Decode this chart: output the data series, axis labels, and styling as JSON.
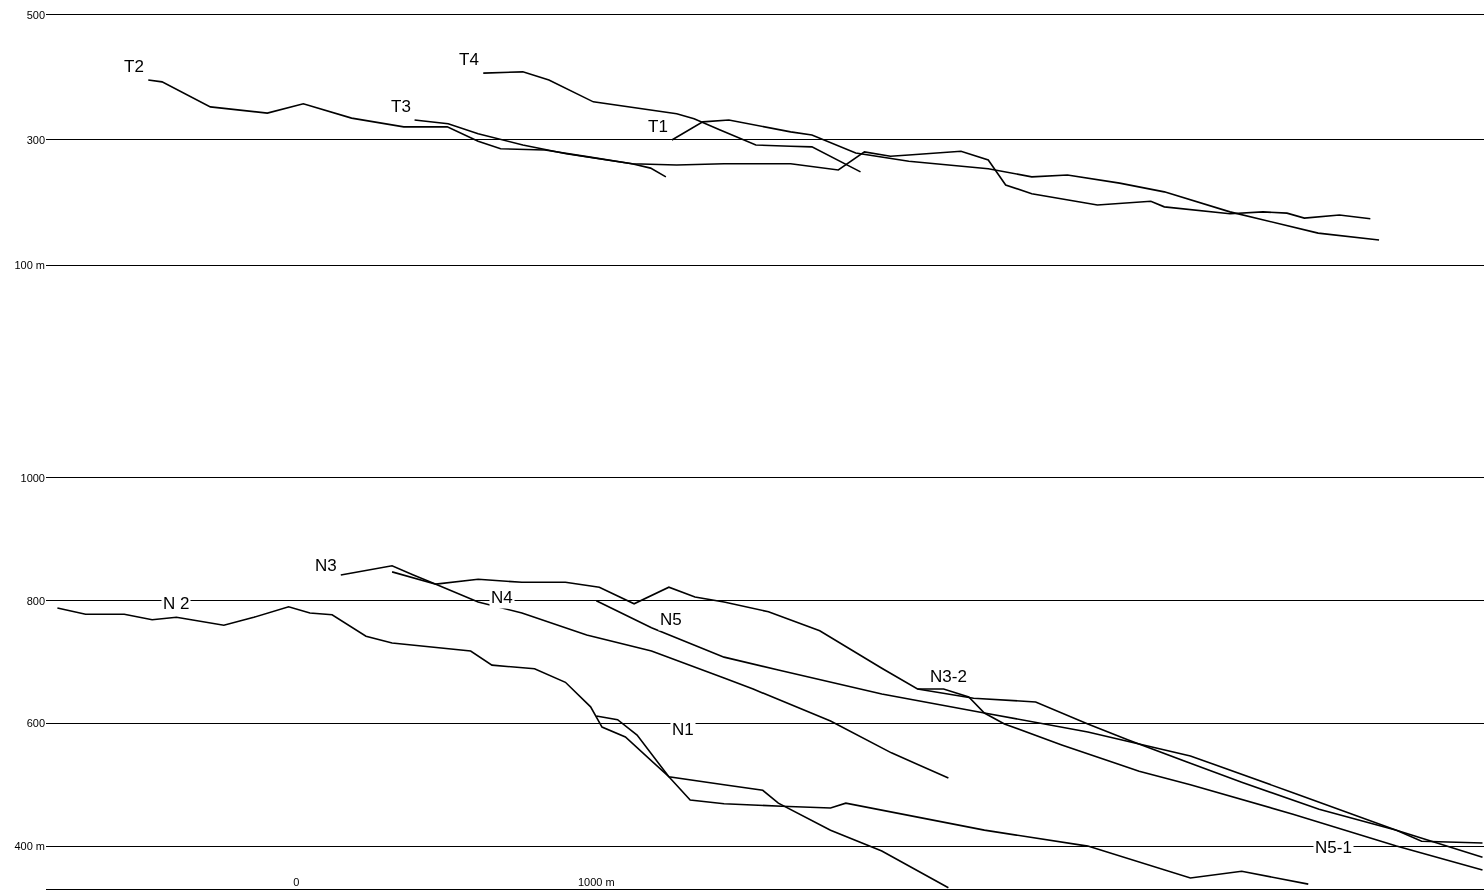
{
  "chart_data": [
    {
      "type": "line",
      "xlim": [
        -835,
        3960
      ],
      "ylim": [
        100,
        500
      ],
      "yticks": [
        500,
        300,
        {
          "value": 100,
          "label": "100 m"
        }
      ],
      "grid": "y",
      "tick_labels": "y",
      "series": [
        {
          "color": "#000000",
          "x": [
            -494,
            -448,
            -287,
            -97,
            23,
            184,
            358,
            503,
            606,
            681,
            829,
            974,
            1119,
            1268,
            1426,
            1648,
            1807,
            1894,
            1981,
            2042,
            2216,
            2307,
            2365,
            2452,
            2671,
            2849,
            2894,
            3113,
            3223,
            3303,
            3361,
            3478,
            3581
          ],
          "values": [
            396,
            393,
            353,
            343,
            358,
            335,
            321,
            321,
            298,
            286,
            284,
            273,
            262,
            260,
            262,
            262,
            252,
            281,
            274,
            276,
            282,
            268,
            228,
            214,
            196,
            202,
            193,
            182,
            185,
            183,
            175,
            180,
            174
          ]
        },
        {
          "color": "#000000",
          "x": [
            1252,
            1355,
            1442,
            1648,
            1719,
            1865,
            2042,
            2307,
            2452,
            2571,
            2745,
            2894,
            3113,
            3407,
            3610
          ],
          "values": [
            300,
            329,
            332,
            313,
            308,
            279,
            266,
            254,
            241,
            244,
            231,
            217,
            185,
            151,
            140
          ]
        },
        {
          "color": "#000000",
          "x": [
            623,
            755,
            842,
            990,
            1268,
            1326,
            1413,
            1532,
            1648,
            1719,
            1881
          ],
          "values": [
            407,
            409,
            396,
            361,
            342,
            334,
            316,
            292,
            290,
            289,
            249
          ]
        },
        {
          "color": "#000000",
          "x": [
            394,
            506,
            606,
            755,
            900,
            1119,
            1181,
            1232
          ],
          "values": [
            332,
            326,
            310,
            292,
            278,
            262,
            255,
            241
          ]
        }
      ],
      "annotations": [
        {
          "text": "T2",
          "x": -494,
          "y": 396
        },
        {
          "text": "T4",
          "x": 623,
          "y": 407
        },
        {
          "text": "T3",
          "x": 394,
          "y": 332
        },
        {
          "text": "T1",
          "x": 1252,
          "y": 300
        }
      ]
    },
    {
      "type": "line",
      "xlim": [
        -835,
        3960
      ],
      "ylim": [
        330,
        1000
      ],
      "yticks": [
        1000,
        800,
        600,
        {
          "value": 400,
          "label": "400 m"
        }
      ],
      "xticks": [
        0,
        {
          "value": 1000,
          "label": "1000 m"
        }
      ],
      "grid": "y",
      "series": [
        {
          "color": "#000000",
          "x": [
            -797,
            -703,
            -574,
            -481,
            -400,
            -242,
            -142,
            -26,
            45,
            119,
            232,
            319,
            581,
            652,
            794,
            897,
            981,
            1019,
            1097,
            1242,
            1313,
            1426,
            1619,
            1781,
            1832,
            2294,
            2639,
            2981,
            3152,
            3374
          ],
          "values": [
            788,
            778,
            778,
            769,
            773,
            760,
            773,
            790,
            780,
            777,
            742,
            731,
            718,
            695,
            689,
            667,
            627,
            594,
            578,
            513,
            475,
            469,
            465,
            462,
            470,
            426,
            400,
            348,
            359,
            338
          ]
        },
        {
          "color": "#000000",
          "x": [
            1000,
            1071,
            1136,
            1242,
            1426,
            1555,
            1607,
            1781,
            1952,
            2174
          ],
          "values": [
            612,
            606,
            581,
            513,
            500,
            491,
            470,
            426,
            392,
            332
          ]
        },
        {
          "color": "#000000",
          "x": [
            148,
            319,
            390,
            465,
            606,
            752,
            897,
            1010,
            1126,
            1242,
            1329,
            1426,
            1574,
            1745,
            1952,
            2071,
            2158,
            2242,
            2294,
            2361,
            2552,
            2810,
            2981,
            3323,
            3668,
            3955
          ],
          "values": [
            842,
            857,
            842,
            827,
            835,
            830,
            830,
            822,
            795,
            822,
            806,
            798,
            782,
            751,
            690,
            656,
            656,
            643,
            617,
            599,
            565,
            522,
            500,
            452,
            400,
            361
          ]
        },
        {
          "color": "#000000",
          "x": [
            2071,
            2258,
            2465,
            2639,
            2774,
            2981,
            3152,
            3410,
            3668,
            3752,
            3955
          ],
          "values": [
            656,
            641,
            635,
            599,
            573,
            535,
            504,
            460,
            426,
            408,
            405
          ]
        },
        {
          "color": "#000000",
          "x": [
            319,
            465,
            606,
            752,
            968,
            1184,
            1426,
            1523,
            1781,
            1984,
            2174
          ],
          "values": [
            847,
            827,
            798,
            780,
            744,
            718,
            674,
            656,
            604,
            552,
            511
          ]
        },
        {
          "color": "#000000",
          "x": [
            1000,
            1184,
            1426,
            1607,
            1952,
            2294,
            2639,
            2981,
            3323,
            3668,
            3955
          ],
          "values": [
            800,
            756,
            708,
            687,
            648,
            617,
            586,
            547,
            487,
            426,
            382
          ]
        }
      ],
      "annotations": [
        {
          "text": "N 2",
          "x": -403,
          "y": 795
        },
        {
          "text": "N3",
          "x": 97,
          "y": 857
        },
        {
          "text": "N4",
          "x": 684,
          "y": 806
        },
        {
          "text": "N5",
          "x": 1248,
          "y": 769
        },
        {
          "text": "N1",
          "x": 1290,
          "y": 590
        },
        {
          "text": "N3-2",
          "x": 2174,
          "y": 677
        },
        {
          "text": "N5-1",
          "x": 3458,
          "y": 397
        }
      ]
    }
  ]
}
